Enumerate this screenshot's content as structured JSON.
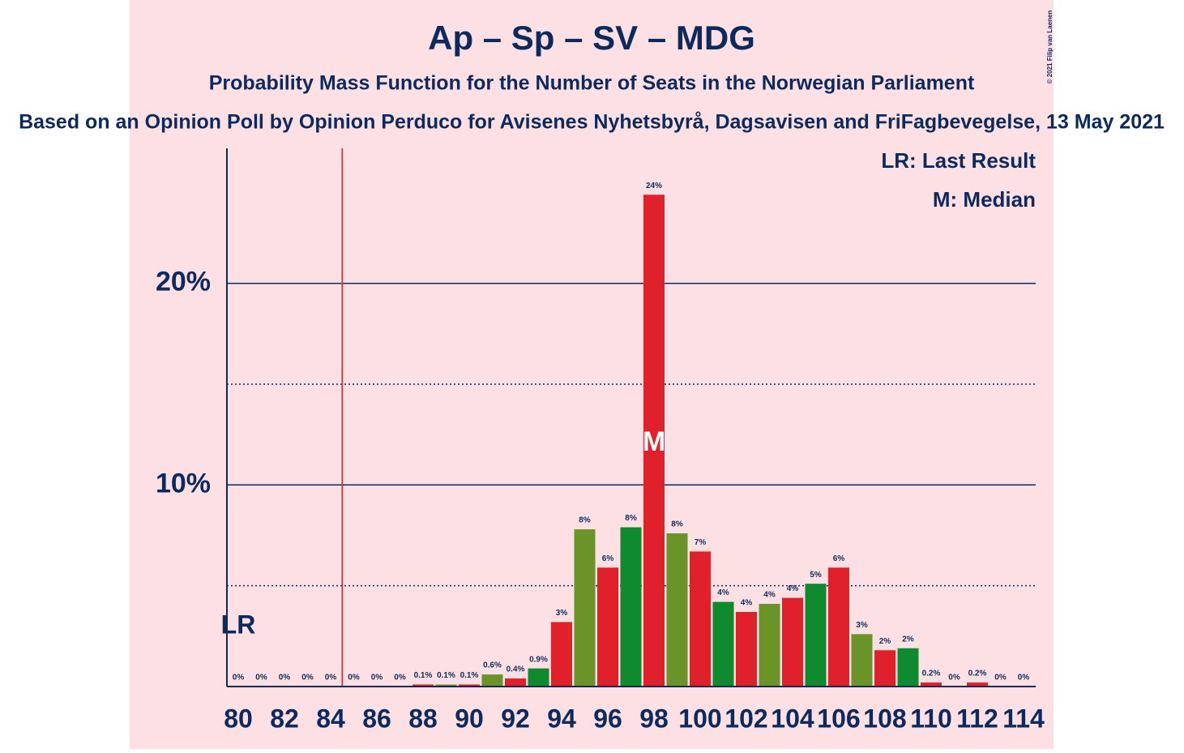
{
  "chart_data": {
    "type": "bar",
    "title": "Ap – Sp – SV – MDG",
    "subtitle": "Probability Mass Function for the Number of Seats in the Norwegian Parliament",
    "source": "Based on an Opinion Poll by Opinion Perduco for Avisenes Nyhetsbyrå, Dagsavisen and FriFagbevegelse, 13 May 2021",
    "copyright": "© 2021 Filip van Laenen",
    "legend": [
      "LR: Last Result",
      "M: Median"
    ],
    "categories": [
      80,
      null,
      82,
      null,
      84,
      null,
      86,
      null,
      88,
      null,
      90,
      null,
      92,
      null,
      94,
      null,
      96,
      null,
      98,
      null,
      100,
      null,
      102,
      null,
      104,
      null,
      106,
      null,
      108,
      null,
      110,
      null,
      112,
      null,
      114
    ],
    "values": [
      0,
      0,
      0,
      0,
      0,
      0,
      0,
      0,
      0.1,
      0.1,
      0.1,
      0.6,
      0.4,
      0.9,
      3.2,
      7.8,
      5.9,
      7.9,
      24.4,
      7.6,
      6.7,
      4.2,
      3.7,
      4.1,
      4.4,
      5.1,
      5.9,
      2.6,
      1.8,
      1.9,
      0.2,
      0,
      0.2,
      0,
      0
    ],
    "value_labels": [
      "0%",
      "0%",
      "0%",
      "0%",
      "0%",
      "0%",
      "0%",
      "0%",
      "0.1%",
      "0.1%",
      "0.1%",
      "0.6%",
      "0.4%",
      "0.9%",
      "3%",
      "8%",
      "6%",
      "8%",
      "24%",
      "8%",
      "7%",
      "4%",
      "4%",
      "4%",
      "4%",
      "5%",
      "6%",
      "3%",
      "2%",
      "2%",
      "0.2%",
      "0%",
      "0.2%",
      "0%",
      "0%"
    ],
    "colors": [
      "#e0202a",
      "#6b9428",
      "#e0202a",
      "#0f8a2e",
      "#e0202a",
      "#6b9428",
      "#e0202a",
      "#0f8a2e",
      "#e0202a",
      "#6b9428",
      "#e0202a",
      "#6b9428",
      "#e0202a",
      "#0f8a2e",
      "#e0202a",
      "#6b9428",
      "#e0202a",
      "#0f8a2e",
      "#e0202a",
      "#6b9428",
      "#e0202a",
      "#0f8a2e",
      "#e0202a",
      "#6b9428",
      "#e0202a",
      "#0f8a2e",
      "#e0202a",
      "#6b9428",
      "#e0202a",
      "#0f8a2e",
      "#e0202a",
      "#6b9428",
      "#e0202a",
      "#0f8a2e",
      "#e0202a"
    ],
    "ylim": [
      0,
      26.7
    ],
    "yticks": [
      {
        "value": 10,
        "label": "10%"
      },
      {
        "value": 20,
        "label": "20%"
      }
    ],
    "minor_gridlines": [
      5,
      15
    ],
    "majority_line": 84.5,
    "last_result": {
      "index": 0,
      "label": "LR"
    },
    "median": {
      "index": 18,
      "label": "M"
    }
  }
}
